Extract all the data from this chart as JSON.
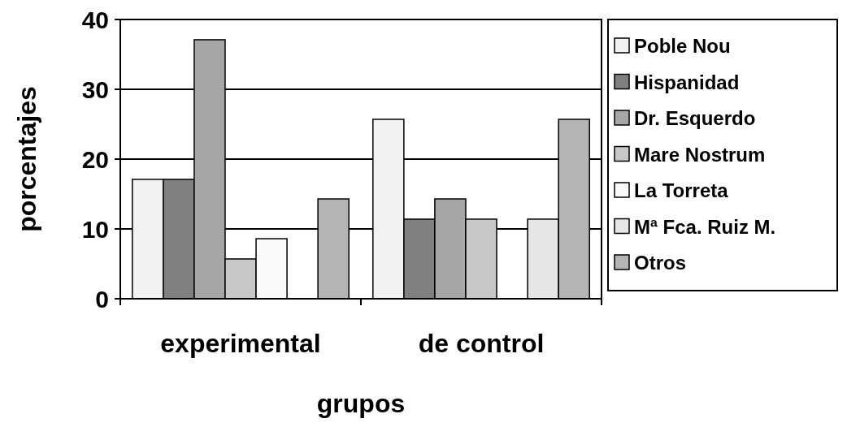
{
  "chart_data": {
    "type": "bar",
    "xlabel": "grupos",
    "ylabel": "porcentajes",
    "categories": [
      "experimental",
      "de control"
    ],
    "series": [
      {
        "name": "Poble Nou",
        "color": "#f2f2f2",
        "values": [
          17.1,
          25.7
        ]
      },
      {
        "name": "Hispanidad",
        "color": "#808080",
        "values": [
          17.1,
          11.4
        ]
      },
      {
        "name": "Dr. Esquerdo",
        "color": "#a6a6a6",
        "values": [
          37.1,
          14.3
        ]
      },
      {
        "name": "Mare Nostrum",
        "color": "#c8c8c8",
        "values": [
          5.7,
          11.4
        ]
      },
      {
        "name": "La Torreta",
        "color": "#fafafa",
        "values": [
          8.6,
          0
        ]
      },
      {
        "name": "Mª Fca. Ruiz M.",
        "color": "#e6e6e6",
        "values": [
          0,
          11.4
        ]
      },
      {
        "name": "Otros",
        "color": "#b4b4b4",
        "values": [
          14.3,
          25.7
        ]
      }
    ],
    "ylim": [
      0,
      40
    ],
    "yticks": [
      0,
      10,
      20,
      30,
      40
    ],
    "grid": "y",
    "legend": "right"
  }
}
